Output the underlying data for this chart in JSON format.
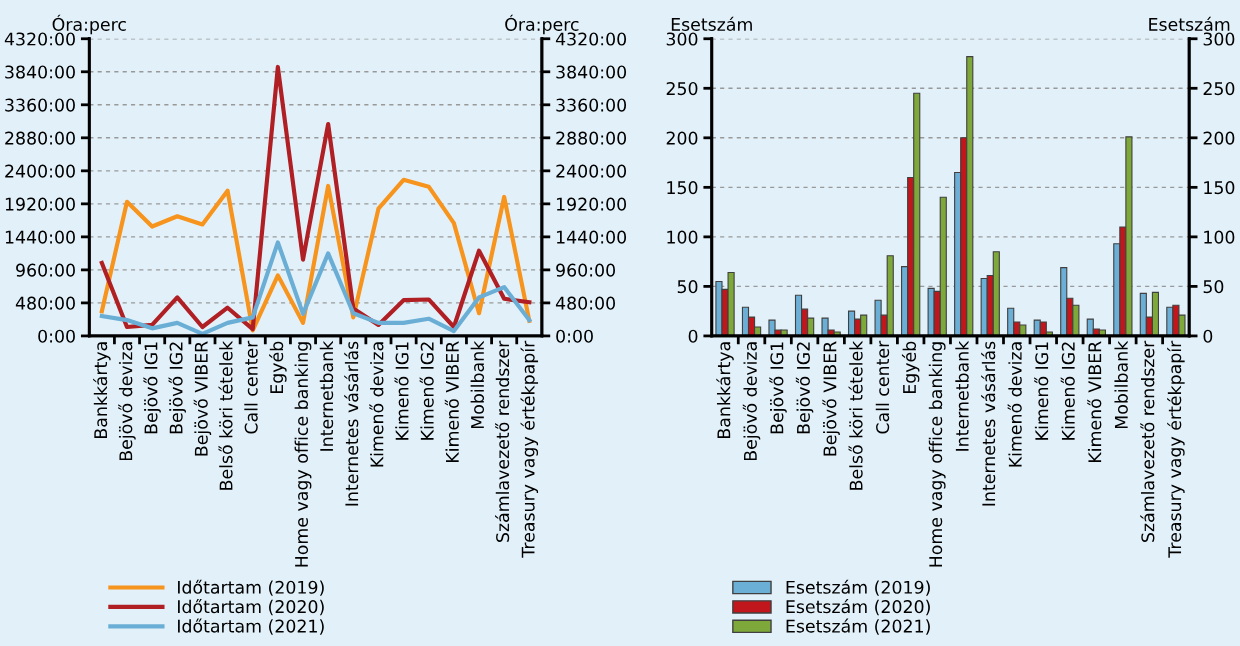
{
  "chart_data": [
    {
      "type": "line",
      "ylabel": "Óra:perc",
      "y2label": "Óra:perc",
      "categories": [
        "Bankkártya",
        "Bejövő deviza",
        "Bejövő IG1",
        "Bejövő IG2",
        "Bejövő VIBER",
        "Belső köri tételek",
        "Call center",
        "Egyéb",
        "Home vagy office banking",
        "Internetbank",
        "Internetes vásárlás",
        "Kimenő deviza",
        "Kimenő IG1",
        "Kimenő IG2",
        "Kimenő VIBER",
        "Mobilbank",
        "Számlavezető rendszer",
        "Treasury vagy értékpapír"
      ],
      "series": [
        {
          "name": "Időtartam (2019)",
          "color": "#f7941d",
          "values": [
            360,
            1950,
            1590,
            1740,
            1620,
            2110,
            80,
            880,
            190,
            2180,
            270,
            1850,
            2270,
            2170,
            1640,
            330,
            2020,
            220
          ]
        },
        {
          "name": "Időtartam (2020)",
          "color": "#b01f24",
          "values": [
            1060,
            130,
            160,
            560,
            130,
            410,
            100,
            3910,
            1110,
            3080,
            400,
            160,
            520,
            530,
            130,
            1240,
            540,
            490
          ]
        },
        {
          "name": "Időtartam (2021)",
          "color": "#6aaed6",
          "values": [
            290,
            230,
            110,
            190,
            30,
            190,
            270,
            1360,
            320,
            1200,
            330,
            190,
            190,
            250,
            70,
            560,
            710,
            230
          ]
        }
      ],
      "ylim": [
        0,
        4320
      ],
      "yticks": [
        {
          "value": 0,
          "label": "0:00"
        },
        {
          "value": 480,
          "label": "480:00"
        },
        {
          "value": 960,
          "label": "960:00"
        },
        {
          "value": 1440,
          "label": "1440:00"
        },
        {
          "value": 1920,
          "label": "1920:00"
        },
        {
          "value": 2400,
          "label": "2400:00"
        },
        {
          "value": 2880,
          "label": "2880:00"
        },
        {
          "value": 3360,
          "label": "3360:00"
        },
        {
          "value": 3840,
          "label": "3840:00"
        },
        {
          "value": 4320,
          "label": "4320:00"
        }
      ],
      "y2lim": [
        0,
        4320
      ],
      "y2ticks": [
        {
          "value": 0,
          "label": "0:00"
        },
        {
          "value": 480,
          "label": "480:00"
        },
        {
          "value": 960,
          "label": "960:00"
        },
        {
          "value": 1440,
          "label": "1440:00"
        },
        {
          "value": 1920,
          "label": "1920:00"
        },
        {
          "value": 2400,
          "label": "2400:00"
        },
        {
          "value": 2880,
          "label": "2880:00"
        },
        {
          "value": 3360,
          "label": "3360:00"
        },
        {
          "value": 3840,
          "label": "3840:00"
        },
        {
          "value": 4320,
          "label": "4320:00"
        }
      ],
      "grid": "y",
      "legend": "bottom",
      "marker": "none",
      "line_style": "solid"
    },
    {
      "type": "bar",
      "ylabel": "Esetszám",
      "y2label": "Esetszám",
      "categories": [
        "Bankkártya",
        "Bejövő deviza",
        "Bejövő IG1",
        "Bejövő IG2",
        "Bejövő VIBER",
        "Belső köri tételek",
        "Call center",
        "Egyéb",
        "Home vagy office banking",
        "Internetbank",
        "Internetes vásárlás",
        "Kimenő deviza",
        "Kimenő IG1",
        "Kimenő IG2",
        "Kimenő VIBER",
        "Mobilbank",
        "Számlavezető rendszer",
        "Treasury vagy értékpapír"
      ],
      "series": [
        {
          "name": "Esetszám (2019)",
          "color": "#6baed6",
          "values": [
            55,
            29,
            16,
            41,
            18,
            25,
            36,
            70,
            48,
            165,
            58,
            28,
            16,
            69,
            17,
            93,
            43,
            29
          ]
        },
        {
          "name": "Esetszám (2020)",
          "color": "#c0161c",
          "values": [
            47,
            19,
            6,
            27,
            6,
            17,
            21,
            160,
            45,
            200,
            61,
            14,
            14,
            38,
            7,
            110,
            19,
            31
          ]
        },
        {
          "name": "Esetszám (2021)",
          "color": "#7ea83a",
          "values": [
            64,
            9,
            6,
            18,
            4,
            21,
            81,
            245,
            140,
            282,
            85,
            11,
            4,
            31,
            6,
            201,
            44,
            21
          ]
        }
      ],
      "ylim": [
        0,
        300
      ],
      "yticks": [
        0,
        50,
        100,
        150,
        200,
        250,
        300
      ],
      "y2lim": [
        0,
        300
      ],
      "y2ticks": [
        0,
        50,
        100,
        150,
        200,
        250,
        300
      ],
      "grid": "y",
      "legend": "bottom"
    }
  ]
}
